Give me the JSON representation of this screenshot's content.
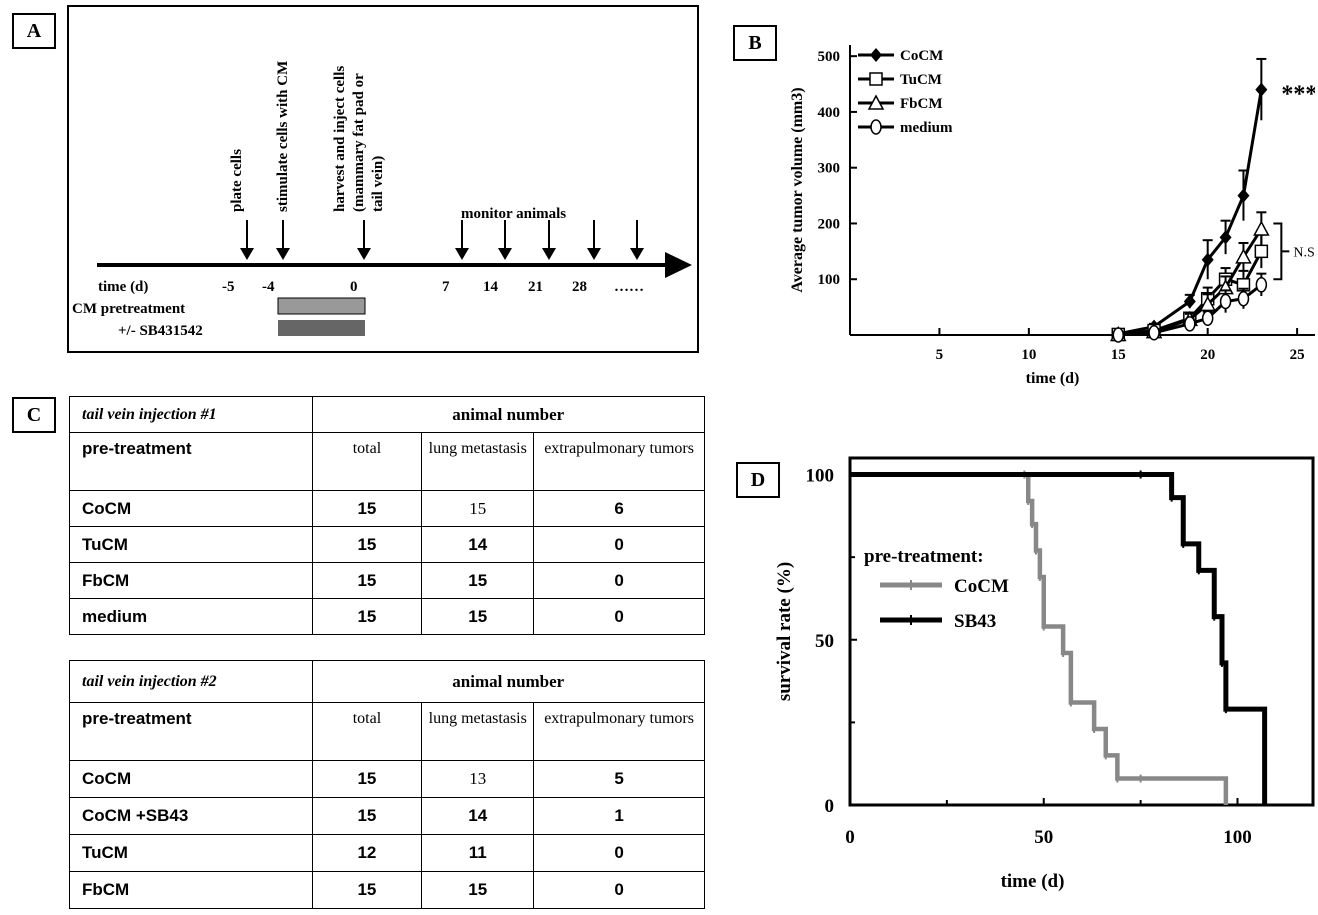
{
  "panel_a": {
    "label": "A",
    "events": [
      "plate cells",
      "stimulate cells with CM",
      "harvest and inject cells",
      "(mammary fat pad or",
      "tail vein)",
      "monitor animals"
    ],
    "time_label": "time (d)",
    "ticks": [
      "-5",
      "-4",
      "0",
      "7",
      "14",
      "21",
      "28",
      "……"
    ],
    "pretreatment_label": "CM pretreatment",
    "sb_label": "+/- SB431542"
  },
  "panel_b": {
    "label": "B",
    "sig": "***",
    "ns": "N.S."
  },
  "panel_c": {
    "label": "C",
    "tables": [
      {
        "title": "tail vein injection #1",
        "group_header": "animal number",
        "row_header": "pre-treatment",
        "columns": [
          "total",
          "lung metastasis",
          "extrapulmonary tumors"
        ],
        "rows": [
          {
            "name": "CoCM",
            "total": "15",
            "lung": "15",
            "extra": "6"
          },
          {
            "name": "TuCM",
            "total": "15",
            "lung": "14",
            "extra": "0"
          },
          {
            "name": "FbCM",
            "total": "15",
            "lung": "15",
            "extra": "0"
          },
          {
            "name": "medium",
            "total": "15",
            "lung": "15",
            "extra": "0"
          }
        ]
      },
      {
        "title": "tail vein injection #2",
        "group_header": "animal number",
        "row_header": "pre-treatment",
        "columns": [
          "total",
          "lung metastasis",
          "extrapulmonary tumors"
        ],
        "rows": [
          {
            "name": "CoCM",
            "total": "15",
            "lung": "13",
            "extra": "5"
          },
          {
            "name": "CoCM +SB43",
            "total": "15",
            "lung": "14",
            "extra": "1"
          },
          {
            "name": "TuCM",
            "total": "12",
            "lung": "11",
            "extra": "0"
          },
          {
            "name": "FbCM",
            "total": "15",
            "lung": "15",
            "extra": "0"
          }
        ]
      }
    ]
  },
  "panel_d": {
    "label": "D",
    "legend_title": "pre-treatment:"
  },
  "chart_data": [
    {
      "type": "line",
      "xlabel": "time (d)",
      "ylabel": "Average tumor volume (mm3)",
      "xlim": [
        0,
        26
      ],
      "ylim": [
        0,
        520
      ],
      "xticks": [
        5,
        10,
        15,
        20,
        25
      ],
      "yticks": [
        100,
        200,
        300,
        400,
        500
      ],
      "legend_position": "top-left",
      "series": [
        {
          "name": "CoCM",
          "marker": "filled-diamond",
          "x": [
            15,
            17,
            19,
            20,
            21,
            22,
            23
          ],
          "y": [
            2,
            15,
            60,
            135,
            175,
            250,
            440
          ],
          "err": [
            3,
            5,
            12,
            35,
            30,
            45,
            55
          ]
        },
        {
          "name": "TuCM",
          "marker": "open-square",
          "x": [
            15,
            17,
            19,
            20,
            21,
            22,
            23
          ],
          "y": [
            1,
            8,
            30,
            65,
            100,
            90,
            150
          ],
          "err": [
            2,
            4,
            10,
            20,
            20,
            25,
            30
          ]
        },
        {
          "name": "FbCM",
          "marker": "open-triangle",
          "x": [
            15,
            17,
            19,
            20,
            21,
            22,
            23
          ],
          "y": [
            1,
            6,
            28,
            55,
            85,
            140,
            190
          ],
          "err": [
            2,
            4,
            10,
            18,
            20,
            25,
            30
          ]
        },
        {
          "name": "medium",
          "marker": "open-circle",
          "x": [
            15,
            17,
            19,
            20,
            21,
            22,
            23
          ],
          "y": [
            0,
            4,
            20,
            30,
            60,
            65,
            90
          ],
          "err": [
            2,
            3,
            8,
            12,
            20,
            18,
            20
          ]
        }
      ],
      "annotations": [
        "***",
        "N.S."
      ]
    },
    {
      "type": "line",
      "xlabel": "time (d)",
      "ylabel": "survival rate (%)",
      "xlim": [
        0,
        120
      ],
      "ylim": [
        0,
        105
      ],
      "xticks": [
        0,
        50,
        100
      ],
      "yticks": [
        0,
        50,
        100
      ],
      "legend_title": "pre-treatment:",
      "series": [
        {
          "name": "CoCM",
          "color": "#888888",
          "step": true,
          "x": [
            0,
            45,
            46,
            47,
            48,
            49,
            50,
            55,
            57,
            63,
            66,
            69,
            75,
            97
          ],
          "y": [
            100,
            100,
            92,
            85,
            77,
            69,
            54,
            46,
            31,
            23,
            15,
            8,
            8,
            0
          ]
        },
        {
          "name": "SB43",
          "color": "#000000",
          "step": true,
          "x": [
            0,
            75,
            83,
            86,
            90,
            94,
            96,
            97,
            107
          ],
          "y": [
            100,
            100,
            93,
            79,
            71,
            57,
            43,
            29,
            0
          ]
        }
      ]
    }
  ]
}
